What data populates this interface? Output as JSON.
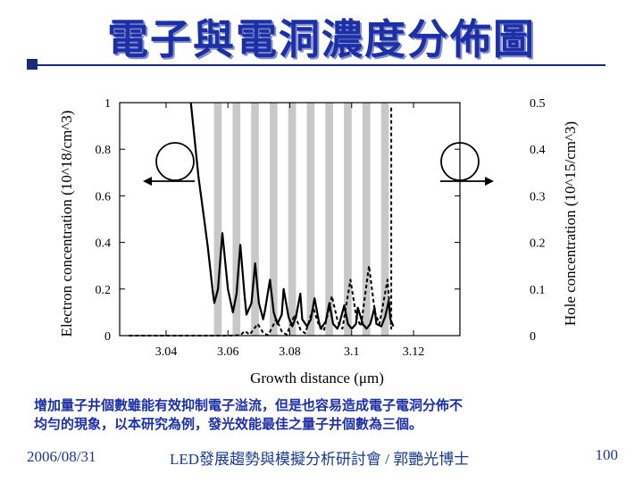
{
  "slide": {
    "title": "電子與電洞濃度分佈圖",
    "caption_line1": "增加量子井個數雖能有效抑制電子溢流，但是也容易造成電子電洞分佈不",
    "caption_line2": "均勻的現象，以本研究為例，發光效能最佳之量子井個數為三個。",
    "footer_date": "2006/08/31",
    "footer_center": "LED發展趨勢與模擬分析研討會 / 郭艷光博士",
    "page_number": "100"
  },
  "chart_data": {
    "type": "line",
    "xlabel": "Growth distance (μm)",
    "ylabel_left": "Electron concentration (10^18/cm^3)",
    "ylabel_right": "Hole concentration (10^15/cm^3)",
    "xlim": [
      3.025,
      3.135
    ],
    "ylim_left": [
      0,
      1
    ],
    "ylim_right": [
      0,
      0.5
    ],
    "x_ticks": [
      "3.04",
      "3.06",
      "3.08",
      "3.1",
      "3.12"
    ],
    "y_ticks_left": [
      "0",
      "0.2",
      "0.4",
      "0.6",
      "0.8",
      "1"
    ],
    "y_ticks_right": [
      "0",
      "0.1",
      "0.2",
      "0.3",
      "0.4",
      "0.5"
    ],
    "wells_x_start": [
      3.0555,
      3.0615,
      3.0675,
      3.0735,
      3.0795,
      3.0855,
      3.0915,
      3.0975,
      3.1035,
      3.1095
    ],
    "well_width": 0.0025,
    "series": [
      {
        "axis": "left",
        "style": "solid",
        "x": [
          3.048,
          3.0505,
          3.0523,
          3.0535,
          3.0545,
          3.055,
          3.0556,
          3.0568,
          3.0582,
          3.06,
          3.0616,
          3.0628,
          3.064,
          3.0654,
          3.066,
          3.0676,
          3.0688,
          3.07,
          3.0714,
          3.072,
          3.0736,
          3.0748,
          3.076,
          3.0774,
          3.078,
          3.0796,
          3.0808,
          3.082,
          3.0834,
          3.084,
          3.0856,
          3.0868,
          3.088,
          3.0894,
          3.09,
          3.0916,
          3.0928,
          3.094,
          3.0954,
          3.096,
          3.0976,
          3.0988,
          3.1,
          3.1014,
          3.102,
          3.1036,
          3.1048,
          3.106,
          3.1074,
          3.108,
          3.1096,
          3.1108,
          3.112,
          3.1125,
          3.1135
        ],
        "y": [
          1.0,
          0.68,
          0.5,
          0.38,
          0.26,
          0.2,
          0.14,
          0.2,
          0.44,
          0.2,
          0.1,
          0.18,
          0.39,
          0.17,
          0.09,
          0.14,
          0.31,
          0.14,
          0.07,
          0.11,
          0.24,
          0.1,
          0.05,
          0.09,
          0.2,
          0.08,
          0.04,
          0.08,
          0.18,
          0.07,
          0.04,
          0.07,
          0.16,
          0.06,
          0.03,
          0.06,
          0.14,
          0.05,
          0.03,
          0.05,
          0.13,
          0.05,
          0.03,
          0.05,
          0.12,
          0.05,
          0.03,
          0.05,
          0.12,
          0.05,
          0.04,
          0.08,
          0.15,
          0.07,
          0.04
        ]
      },
      {
        "axis": "right",
        "style": "dashed",
        "x": [
          3.028,
          3.06,
          3.064,
          3.0655,
          3.067,
          3.0696,
          3.0715,
          3.073,
          3.0756,
          3.0775,
          3.079,
          3.0816,
          3.0835,
          3.085,
          3.0876,
          3.0895,
          3.091,
          3.0936,
          3.0955,
          3.097,
          3.0996,
          3.1015,
          3.103,
          3.1056,
          3.1075,
          3.109,
          3.1116,
          3.1125,
          3.1128,
          3.1128,
          3.1135
        ],
        "y": [
          0.0,
          0.0,
          0.001,
          0.01,
          0.002,
          0.025,
          0.005,
          0.001,
          0.035,
          0.008,
          0.002,
          0.045,
          0.012,
          0.005,
          0.06,
          0.02,
          0.01,
          0.085,
          0.03,
          0.015,
          0.12,
          0.04,
          0.02,
          0.15,
          0.05,
          0.025,
          0.12,
          0.04,
          0.015,
          0.49,
          0.49
        ]
      }
    ],
    "annotations": [
      "left-arrow",
      "right-arrow"
    ]
  }
}
